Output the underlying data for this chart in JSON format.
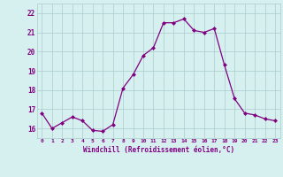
{
  "x": [
    0,
    1,
    2,
    3,
    4,
    5,
    6,
    7,
    8,
    9,
    10,
    11,
    12,
    13,
    14,
    15,
    16,
    17,
    18,
    19,
    20,
    21,
    22,
    23
  ],
  "y": [
    16.8,
    16.0,
    16.3,
    16.6,
    16.4,
    15.9,
    15.85,
    16.2,
    18.1,
    18.8,
    19.8,
    20.2,
    21.5,
    21.5,
    21.7,
    21.1,
    21.0,
    21.2,
    19.3,
    17.55,
    16.8,
    16.7,
    16.5,
    16.4
  ],
  "line_color": "#800080",
  "marker": "D",
  "marker_size": 2.5,
  "bg_color": "#d6f0f0",
  "grid_color": "#aacccc",
  "xlabel": "Windchill (Refroidissement éolien,°C)",
  "xlabel_color": "#800080",
  "tick_color": "#800080",
  "ylim_min": 15.5,
  "ylim_max": 22.5,
  "xlim_min": -0.5,
  "xlim_max": 23.5,
  "yticks": [
    16,
    17,
    18,
    19,
    20,
    21,
    22
  ],
  "xtick_labels": [
    "0",
    "1",
    "2",
    "3",
    "4",
    "5",
    "6",
    "7",
    "8",
    "9",
    "10",
    "11",
    "12",
    "13",
    "14",
    "15",
    "16",
    "17",
    "18",
    "19",
    "20",
    "21",
    "22",
    "23"
  ]
}
